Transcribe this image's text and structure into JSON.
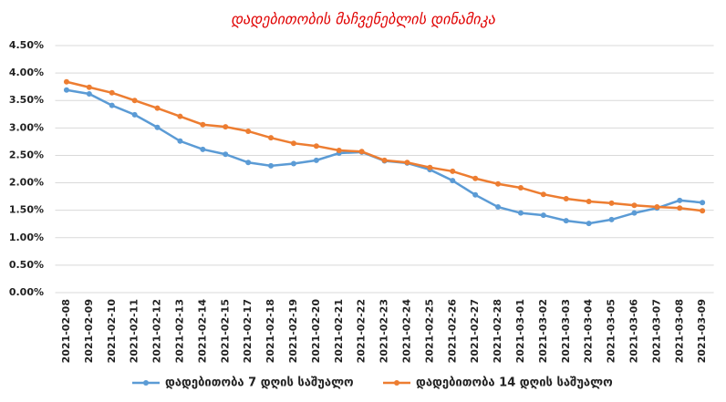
{
  "chart_data": {
    "type": "line",
    "title": "დადებითობის მაჩვენებლის დინამიკა",
    "categories": [
      "2021-02-08",
      "2021-02-09",
      "2021-02-10",
      "2021-02-11",
      "2021-02-12",
      "2021-02-13",
      "2021-02-14",
      "2021-02-15",
      "2021-02-17",
      "2021-02-18",
      "2021-02-19",
      "2021-02-20",
      "2021-02-21",
      "2021-02-22",
      "2021-02-23",
      "2021-02-24",
      "2021-02-25",
      "2021-02-26",
      "2021-02-27",
      "2021-02-28",
      "2021-03-01",
      "2021-03-02",
      "2021-03-03",
      "2021-03-04",
      "2021-03-05",
      "2021-03-06",
      "2021-03-07",
      "2021-03-08",
      "2021-03-09"
    ],
    "series": [
      {
        "name": "დადებითობა 7 დღის საშუალო",
        "color": "#5b9bd5",
        "values": [
          3.69,
          3.62,
          3.41,
          3.24,
          3.01,
          2.76,
          2.61,
          2.52,
          2.37,
          2.31,
          2.35,
          2.41,
          2.54,
          2.56,
          2.4,
          2.36,
          2.24,
          2.04,
          1.78,
          1.56,
          1.45,
          1.41,
          1.31,
          1.26,
          1.33,
          1.45,
          1.54,
          1.68,
          1.64
        ]
      },
      {
        "name": "დადებითობა 14 დღის საშუალო",
        "color": "#ed7d31",
        "values": [
          3.84,
          3.74,
          3.64,
          3.5,
          3.36,
          3.21,
          3.06,
          3.02,
          2.94,
          2.82,
          2.72,
          2.67,
          2.59,
          2.57,
          2.41,
          2.37,
          2.28,
          2.21,
          2.08,
          1.98,
          1.91,
          1.79,
          1.71,
          1.66,
          1.63,
          1.59,
          1.56,
          1.54,
          1.49
        ]
      }
    ],
    "ylim": [
      0,
      4.5
    ],
    "yticks": [
      {
        "value": 0,
        "label": "0.00%"
      },
      {
        "value": 0.5,
        "label": "0.50%"
      },
      {
        "value": 1,
        "label": "1.00%"
      },
      {
        "value": 1.5,
        "label": "1.50%"
      },
      {
        "value": 2,
        "label": "2.00%"
      },
      {
        "value": 2.5,
        "label": "2.50%"
      },
      {
        "value": 3,
        "label": "3.00%"
      },
      {
        "value": 3.5,
        "label": "3.50%"
      },
      {
        "value": 4,
        "label": "4.00%"
      },
      {
        "value": 4.5,
        "label": "4.50%"
      }
    ],
    "grid": true,
    "legend": "bottom"
  }
}
